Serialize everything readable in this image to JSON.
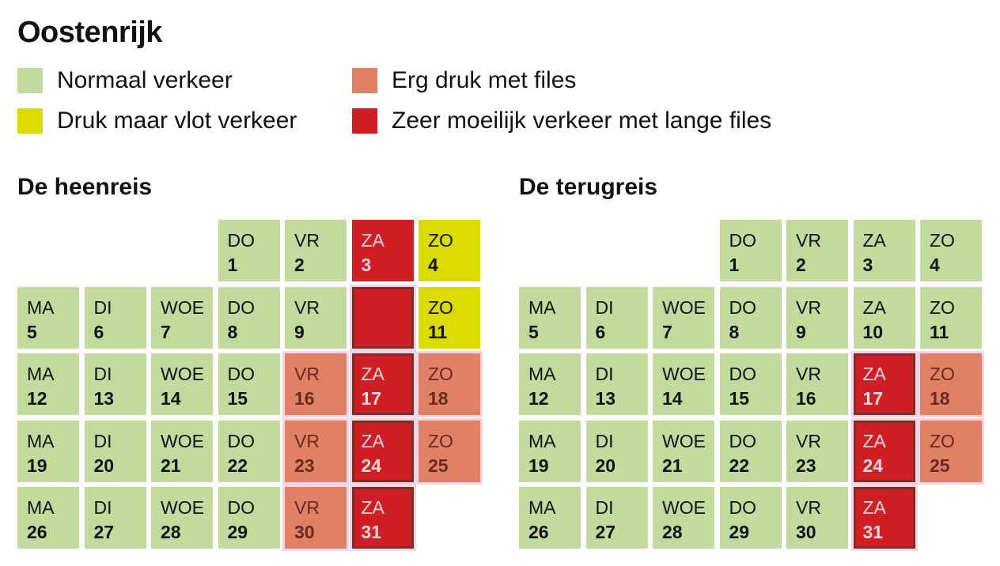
{
  "title": "Oostenrijk",
  "colors": {
    "normaal": "#c2da9c",
    "druk": "#dcdb00",
    "erg_druk": "#e08065",
    "zeer_moeilijk": "#d01f24"
  },
  "legend": [
    {
      "key": "normaal",
      "label": "Normaal verkeer"
    },
    {
      "key": "erg_druk",
      "label": "Erg druk met files"
    },
    {
      "key": "druk",
      "label": "Druk maar vlot verkeer"
    },
    {
      "key": "zeer_moeilijk",
      "label": "Zeer moeilijk verkeer met lange files"
    }
  ],
  "chart_data": [
    {
      "type": "table",
      "title": "De heenreis",
      "weekday_labels": [
        "MA",
        "DI",
        "WOE",
        "DO",
        "VR",
        "ZA",
        "ZO"
      ],
      "days": [
        {
          "day": "DO",
          "num": "1",
          "level": "normaal",
          "weekday": 3
        },
        {
          "day": "VR",
          "num": "2",
          "level": "normaal",
          "weekday": 4
        },
        {
          "day": "ZA",
          "num": "3",
          "level": "zeer_moeilijk",
          "weekday": 5
        },
        {
          "day": "ZO",
          "num": "4",
          "level": "druk",
          "weekday": 6
        },
        {
          "day": "MA",
          "num": "5",
          "level": "normaal",
          "weekday": 0
        },
        {
          "day": "DI",
          "num": "6",
          "level": "normaal",
          "weekday": 1
        },
        {
          "day": "WOE",
          "num": "7",
          "level": "normaal",
          "weekday": 2
        },
        {
          "day": "DO",
          "num": "8",
          "level": "normaal",
          "weekday": 3
        },
        {
          "day": "VR",
          "num": "9",
          "level": "normaal",
          "weekday": 4
        },
        {
          "day": "",
          "num": "",
          "level": "zeer_moeilijk",
          "weekday": 5
        },
        {
          "day": "ZO",
          "num": "11",
          "level": "druk",
          "weekday": 6
        },
        {
          "day": "MA",
          "num": "12",
          "level": "normaal",
          "weekday": 0
        },
        {
          "day": "DI",
          "num": "13",
          "level": "normaal",
          "weekday": 1
        },
        {
          "day": "WOE",
          "num": "14",
          "level": "normaal",
          "weekday": 2
        },
        {
          "day": "DO",
          "num": "15",
          "level": "normaal",
          "weekday": 3
        },
        {
          "day": "VR",
          "num": "16",
          "level": "erg_druk",
          "weekday": 4
        },
        {
          "day": "ZA",
          "num": "17",
          "level": "zeer_moeilijk",
          "weekday": 5
        },
        {
          "day": "ZO",
          "num": "18",
          "level": "erg_druk",
          "weekday": 6
        },
        {
          "day": "MA",
          "num": "19",
          "level": "normaal",
          "weekday": 0
        },
        {
          "day": "DI",
          "num": "20",
          "level": "normaal",
          "weekday": 1
        },
        {
          "day": "WOE",
          "num": "21",
          "level": "normaal",
          "weekday": 2
        },
        {
          "day": "DO",
          "num": "22",
          "level": "normaal",
          "weekday": 3
        },
        {
          "day": "VR",
          "num": "23",
          "level": "erg_druk",
          "weekday": 4
        },
        {
          "day": "ZA",
          "num": "24",
          "level": "zeer_moeilijk",
          "weekday": 5
        },
        {
          "day": "ZO",
          "num": "25",
          "level": "erg_druk",
          "weekday": 6
        },
        {
          "day": "MA",
          "num": "26",
          "level": "normaal",
          "weekday": 0
        },
        {
          "day": "DI",
          "num": "27",
          "level": "normaal",
          "weekday": 1
        },
        {
          "day": "WOE",
          "num": "28",
          "level": "normaal",
          "weekday": 2
        },
        {
          "day": "DO",
          "num": "29",
          "level": "normaal",
          "weekday": 3
        },
        {
          "day": "VR",
          "num": "30",
          "level": "erg_druk",
          "weekday": 4
        },
        {
          "day": "ZA",
          "num": "31",
          "level": "zeer_moeilijk",
          "weekday": 5
        }
      ]
    },
    {
      "type": "table",
      "title": "De terugreis",
      "weekday_labels": [
        "MA",
        "DI",
        "WOE",
        "DO",
        "VR",
        "ZA",
        "ZO"
      ],
      "days": [
        {
          "day": "DO",
          "num": "1",
          "level": "normaal",
          "weekday": 3
        },
        {
          "day": "VR",
          "num": "2",
          "level": "normaal",
          "weekday": 4
        },
        {
          "day": "ZA",
          "num": "3",
          "level": "normaal",
          "weekday": 5
        },
        {
          "day": "ZO",
          "num": "4",
          "level": "normaal",
          "weekday": 6
        },
        {
          "day": "MA",
          "num": "5",
          "level": "normaal",
          "weekday": 0
        },
        {
          "day": "DI",
          "num": "6",
          "level": "normaal",
          "weekday": 1
        },
        {
          "day": "WOE",
          "num": "7",
          "level": "normaal",
          "weekday": 2
        },
        {
          "day": "DO",
          "num": "8",
          "level": "normaal",
          "weekday": 3
        },
        {
          "day": "VR",
          "num": "9",
          "level": "normaal",
          "weekday": 4
        },
        {
          "day": "ZA",
          "num": "10",
          "level": "normaal",
          "weekday": 5
        },
        {
          "day": "ZO",
          "num": "11",
          "level": "normaal",
          "weekday": 6
        },
        {
          "day": "MA",
          "num": "12",
          "level": "normaal",
          "weekday": 0
        },
        {
          "day": "DI",
          "num": "13",
          "level": "normaal",
          "weekday": 1
        },
        {
          "day": "WOE",
          "num": "14",
          "level": "normaal",
          "weekday": 2
        },
        {
          "day": "DO",
          "num": "15",
          "level": "normaal",
          "weekday": 3
        },
        {
          "day": "VR",
          "num": "16",
          "level": "normaal",
          "weekday": 4
        },
        {
          "day": "ZA",
          "num": "17",
          "level": "zeer_moeilijk",
          "weekday": 5
        },
        {
          "day": "ZO",
          "num": "18",
          "level": "erg_druk",
          "weekday": 6
        },
        {
          "day": "MA",
          "num": "19",
          "level": "normaal",
          "weekday": 0
        },
        {
          "day": "DI",
          "num": "20",
          "level": "normaal",
          "weekday": 1
        },
        {
          "day": "WOE",
          "num": "21",
          "level": "normaal",
          "weekday": 2
        },
        {
          "day": "DO",
          "num": "22",
          "level": "normaal",
          "weekday": 3
        },
        {
          "day": "VR",
          "num": "23",
          "level": "normaal",
          "weekday": 4
        },
        {
          "day": "ZA",
          "num": "24",
          "level": "zeer_moeilijk",
          "weekday": 5
        },
        {
          "day": "ZO",
          "num": "25",
          "level": "erg_druk",
          "weekday": 6
        },
        {
          "day": "MA",
          "num": "26",
          "level": "normaal",
          "weekday": 0
        },
        {
          "day": "DI",
          "num": "27",
          "level": "normaal",
          "weekday": 1
        },
        {
          "day": "WOE",
          "num": "28",
          "level": "normaal",
          "weekday": 2
        },
        {
          "day": "DO",
          "num": "29",
          "level": "normaal",
          "weekday": 3
        },
        {
          "day": "VR",
          "num": "30",
          "level": "normaal",
          "weekday": 4
        },
        {
          "day": "ZA",
          "num": "31",
          "level": "zeer_moeilijk",
          "weekday": 5
        }
      ]
    }
  ]
}
